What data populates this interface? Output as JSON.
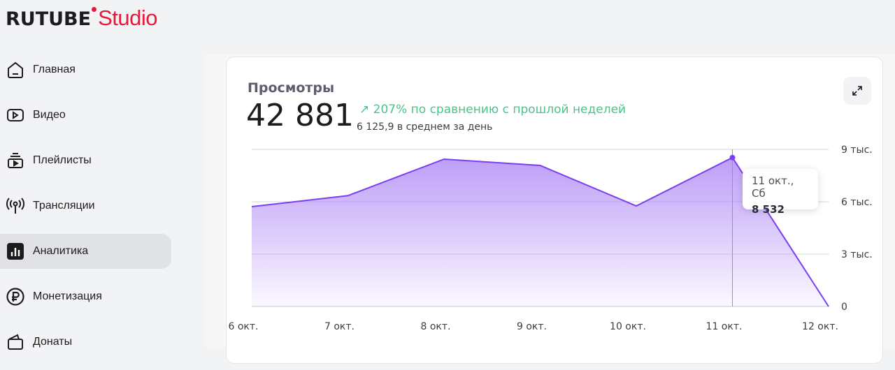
{
  "logo": {
    "brand": "RUTUBE",
    "product": "Studio"
  },
  "sidebar": {
    "items": [
      {
        "label": "Главная",
        "icon": "home-icon"
      },
      {
        "label": "Видео",
        "icon": "video-icon"
      },
      {
        "label": "Плейлисты",
        "icon": "playlist-icon"
      },
      {
        "label": "Трансляции",
        "icon": "broadcast-icon"
      },
      {
        "label": "Аналитика",
        "icon": "analytics-icon",
        "active": true
      },
      {
        "label": "Монетизация",
        "icon": "ruble-icon"
      },
      {
        "label": "Донаты",
        "icon": "wallet-icon"
      }
    ]
  },
  "card": {
    "title": "Просмотры",
    "total": "42 881",
    "delta": "207% по сравнению с прошлой неделей",
    "average": "6 125,9 в среднем за день"
  },
  "tooltip": {
    "date": "11 окт., Сб",
    "value": "8 532"
  },
  "colors": {
    "line": "#7b3ff2",
    "accent_green": "#4cc38a",
    "brand": "#e8173c"
  },
  "chart_data": {
    "type": "area",
    "title": "Просмотры",
    "categories": [
      "6 окт.",
      "7 окт.",
      "8 окт.",
      "9 окт.",
      "10 окт.",
      "11 окт.",
      "12 окт."
    ],
    "values": [
      5720,
      6350,
      8440,
      8080,
      5760,
      8532,
      0
    ],
    "ylim": [
      0,
      9000
    ],
    "yticks": [
      0,
      3000,
      6000,
      9000
    ],
    "ytick_labels": [
      "0",
      "3 тыс.",
      "6 тыс.",
      "9 тыс."
    ],
    "highlight_index": 5,
    "grid": true
  }
}
